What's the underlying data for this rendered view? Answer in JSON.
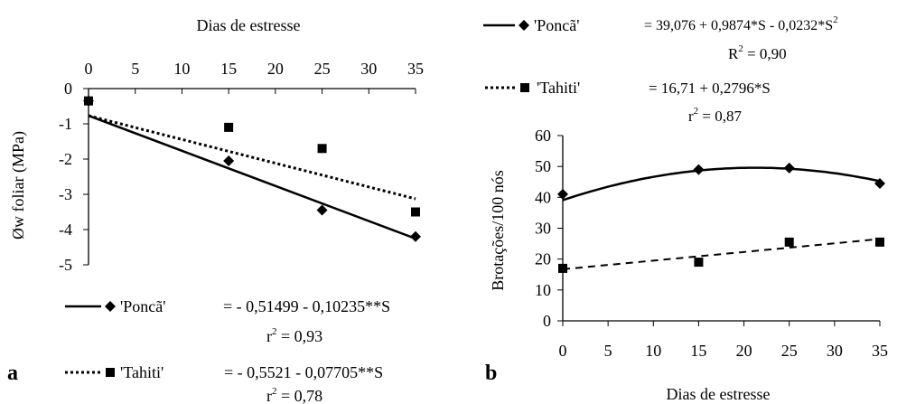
{
  "chart_data": [
    {
      "panel": "a",
      "type": "scatter",
      "xlabel": "Dias de estresse",
      "ylabel": "Øw foliar (MPa)",
      "xlim": [
        0,
        35
      ],
      "ylim": [
        -5,
        0
      ],
      "xticks": [
        0,
        5,
        10,
        15,
        20,
        25,
        30,
        35
      ],
      "yticks": [
        0,
        -1,
        -2,
        -3,
        -4,
        -5
      ],
      "x_axis_position": "top",
      "grid": false,
      "legend_position": "bottom",
      "series": [
        {
          "name": "'Poncã'",
          "marker": "diamond",
          "line_style": "solid",
          "x": [
            0,
            15,
            25,
            35
          ],
          "y": [
            -0.35,
            -2.05,
            -3.45,
            -4.2
          ],
          "equation": "= - 0,51499 - 0,10235**S",
          "r2_label": "r",
          "r2_value": " = 0,93",
          "fit": {
            "a": -0.51499,
            "b": -0.10235
          }
        },
        {
          "name": "'Tahiti'",
          "marker": "square",
          "line_style": "dotted",
          "x": [
            0,
            15,
            25,
            35
          ],
          "y": [
            -0.35,
            -1.1,
            -1.7,
            -3.5
          ],
          "equation": "= - 0,5521 - 0,07705**S",
          "r2_label": "r",
          "r2_value": " = 0,78",
          "fit": {
            "a": -0.5521,
            "b": -0.07705
          }
        }
      ]
    },
    {
      "panel": "b",
      "type": "scatter",
      "xlabel": "Dias de estresse",
      "ylabel": "Brotações/100 nós",
      "xlim": [
        0,
        35
      ],
      "ylim": [
        0,
        60
      ],
      "xticks": [
        0,
        5,
        10,
        15,
        20,
        25,
        30,
        35
      ],
      "yticks": [
        0,
        10,
        20,
        30,
        40,
        50,
        60
      ],
      "x_axis_position": "bottom",
      "grid": false,
      "legend_position": "top",
      "series": [
        {
          "name": "'Poncã'",
          "marker": "diamond",
          "line_style": "solid",
          "x": [
            0,
            15,
            25,
            35
          ],
          "y": [
            41,
            49,
            49.5,
            44.5
          ],
          "equation": "= 39,076 + 0,9874*S - 0,0232*S",
          "equation_sup": "2",
          "r2_label": "R",
          "r2_value": " = 0,90",
          "fit": {
            "a": 39.076,
            "b": 0.9874,
            "c": -0.0232
          }
        },
        {
          "name": "'Tahiti'",
          "marker": "square",
          "line_style": "dashed",
          "x": [
            0,
            15,
            25,
            35
          ],
          "y": [
            17,
            19,
            25.5,
            25.5
          ],
          "equation": "= 16,71 + 0,2796*S",
          "r2_label": "r",
          "r2_value": " = 0,87",
          "fit": {
            "a": 16.71,
            "b": 0.2796
          }
        }
      ]
    }
  ],
  "labels": {
    "sup": "2"
  }
}
